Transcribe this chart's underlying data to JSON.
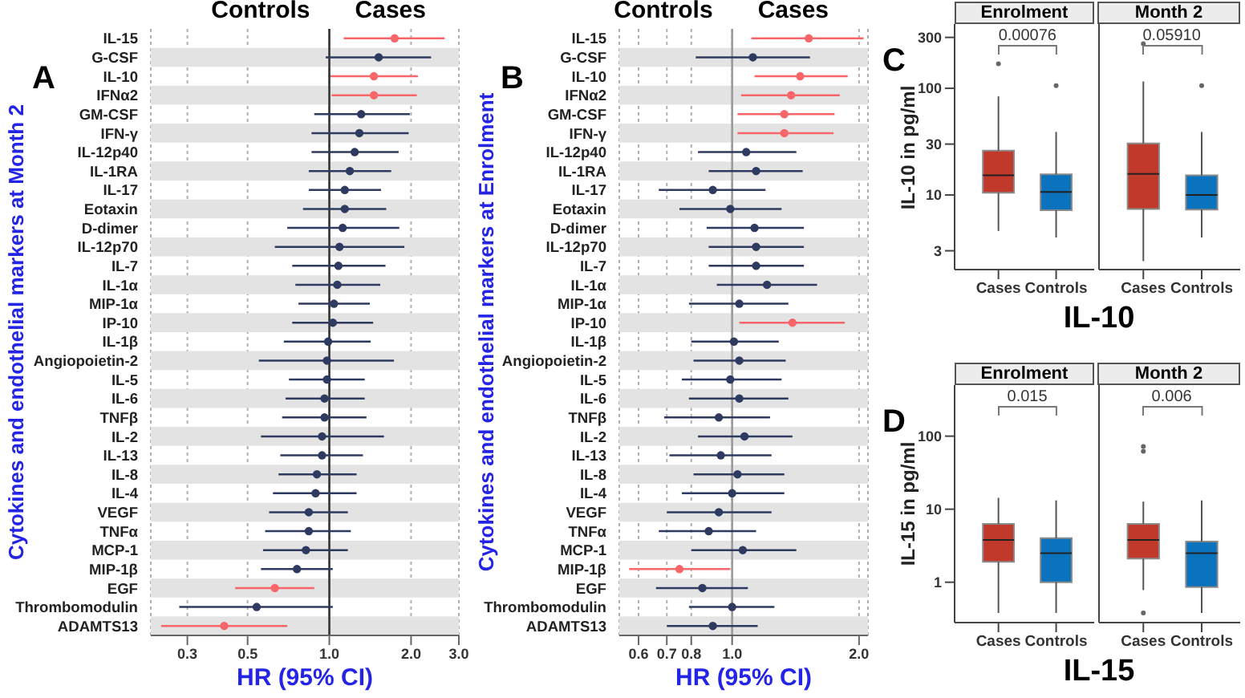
{
  "chart_data": [
    {
      "type": "scatter",
      "orientation": "horizontal",
      "xlabel": "HR (95% CI)",
      "ylabel": "Cytokines and endothelial markers at Month 2",
      "annotations": [
        "A",
        "Controls",
        "Cases"
      ],
      "categories": [
        "IL-15",
        "G-CSF",
        "IL-10",
        "IFNα2",
        "GM-CSF",
        "IFN-γ",
        "IL-12p40",
        "IL-1RA",
        "IL-17",
        "Eotaxin",
        "D-dimer",
        "IL-12p70",
        "IL-7",
        "IL-1α",
        "MIP-1α",
        "IP-10",
        "IL-1β",
        "Angiopoietin-2",
        "IL-5",
        "IL-6",
        "TNFβ",
        "IL-2",
        "IL-13",
        "IL-8",
        "IL-4",
        "VEGF",
        "TNFα",
        "MCP-1",
        "MIP-1β",
        "EGF",
        "Thrombomodulin",
        "ADAMTS13"
      ],
      "values": [
        1.74,
        1.52,
        1.46,
        1.46,
        1.31,
        1.29,
        1.24,
        1.19,
        1.14,
        1.14,
        1.12,
        1.09,
        1.08,
        1.07,
        1.04,
        1.03,
        0.99,
        0.98,
        0.98,
        0.96,
        0.96,
        0.94,
        0.94,
        0.9,
        0.89,
        0.84,
        0.84,
        0.82,
        0.76,
        0.63,
        0.54,
        0.41
      ],
      "errors": [
        [
          1.13,
          2.66
        ],
        [
          0.97,
          2.37
        ],
        [
          1.01,
          2.12
        ],
        [
          1.02,
          2.1
        ],
        [
          0.88,
          1.98
        ],
        [
          0.86,
          1.96
        ],
        [
          0.86,
          1.8
        ],
        [
          0.84,
          1.69
        ],
        [
          0.84,
          1.55
        ],
        [
          0.8,
          1.62
        ],
        [
          0.7,
          1.81
        ],
        [
          0.63,
          1.89
        ],
        [
          0.73,
          1.61
        ],
        [
          0.75,
          1.54
        ],
        [
          0.77,
          1.41
        ],
        [
          0.73,
          1.45
        ],
        [
          0.68,
          1.42
        ],
        [
          0.55,
          1.73
        ],
        [
          0.71,
          1.35
        ],
        [
          0.69,
          1.35
        ],
        [
          0.67,
          1.37
        ],
        [
          0.56,
          1.59
        ],
        [
          0.66,
          1.33
        ],
        [
          0.65,
          1.26
        ],
        [
          0.62,
          1.26
        ],
        [
          0.6,
          1.17
        ],
        [
          0.58,
          1.2
        ],
        [
          0.57,
          1.17
        ],
        [
          0.56,
          1.03
        ],
        [
          0.45,
          0.88
        ],
        [
          0.28,
          1.03
        ],
        [
          0.24,
          0.7
        ]
      ],
      "colors": [
        "#f8666a",
        "#2e3a5f",
        "#f8666a",
        "#f8666a",
        "#2e3a5f",
        "#2e3a5f",
        "#2e3a5f",
        "#2e3a5f",
        "#2e3a5f",
        "#2e3a5f",
        "#2e3a5f",
        "#2e3a5f",
        "#2e3a5f",
        "#2e3a5f",
        "#2e3a5f",
        "#2e3a5f",
        "#2e3a5f",
        "#2e3a5f",
        "#2e3a5f",
        "#2e3a5f",
        "#2e3a5f",
        "#2e3a5f",
        "#2e3a5f",
        "#2e3a5f",
        "#2e3a5f",
        "#2e3a5f",
        "#2e3a5f",
        "#2e3a5f",
        "#2e3a5f",
        "#f8666a",
        "#2e3a5f",
        "#f8666a"
      ],
      "log": "x",
      "xlim": [
        0.22,
        3
      ],
      "xticks": [
        0.3,
        0.5,
        {
          "value": 1,
          "label": "1.0"
        },
        {
          "value": 2,
          "label": "2.0"
        },
        {
          "value": 3,
          "label": "3.0"
        }
      ],
      "grid": "x",
      "marker": "circle",
      "ref_lines": [
        {
          "axis": "x",
          "value": 1,
          "color": "#333333"
        }
      ]
    },
    {
      "type": "scatter",
      "orientation": "horizontal",
      "xlabel": "HR (95% CI)",
      "ylabel": "Cytokines and endothelial markers at Enrolment",
      "annotations": [
        "B",
        "Controls",
        "Cases"
      ],
      "categories": [
        "IL-15",
        "G-CSF",
        "IL-10",
        "IFNα2",
        "GM-CSF",
        "IFN-γ",
        "IL-12p40",
        "IL-1RA",
        "IL-17",
        "Eotaxin",
        "D-dimer",
        "IL-12p70",
        "IL-7",
        "IL-1α",
        "MIP-1α",
        "IP-10",
        "IL-1β",
        "Angiopoietin-2",
        "IL-5",
        "IL-6",
        "TNFβ",
        "IL-2",
        "IL-13",
        "IL-8",
        "IL-4",
        "VEGF",
        "TNFα",
        "MCP-1",
        "MIP-1β",
        "EGF",
        "Thrombomodulin",
        "ADAMTS13"
      ],
      "values": [
        1.52,
        1.12,
        1.45,
        1.38,
        1.33,
        1.33,
        1.08,
        1.14,
        0.9,
        0.99,
        1.13,
        1.14,
        1.14,
        1.21,
        1.04,
        1.39,
        1.01,
        1.04,
        0.99,
        1.04,
        0.93,
        1.07,
        0.94,
        1.03,
        1.0,
        0.93,
        0.88,
        1.06,
        0.75,
        0.85,
        1.0,
        0.9
      ],
      "errors": [
        [
          1.11,
          2.05
        ],
        [
          0.82,
          1.53
        ],
        [
          1.13,
          1.88
        ],
        [
          1.05,
          1.8
        ],
        [
          1.03,
          1.75
        ],
        [
          1.03,
          1.74
        ],
        [
          0.83,
          1.42
        ],
        [
          0.88,
          1.47
        ],
        [
          0.67,
          1.2
        ],
        [
          0.75,
          1.31
        ],
        [
          0.87,
          1.48
        ],
        [
          0.88,
          1.48
        ],
        [
          0.88,
          1.48
        ],
        [
          0.92,
          1.59
        ],
        [
          0.79,
          1.36
        ],
        [
          1.04,
          1.85
        ],
        [
          0.8,
          1.29
        ],
        [
          0.81,
          1.34
        ],
        [
          0.76,
          1.31
        ],
        [
          0.79,
          1.36
        ],
        [
          0.69,
          1.23
        ],
        [
          0.83,
          1.39
        ],
        [
          0.71,
          1.24
        ],
        [
          0.81,
          1.33
        ],
        [
          0.76,
          1.33
        ],
        [
          0.7,
          1.24
        ],
        [
          0.67,
          1.14
        ],
        [
          0.8,
          1.42
        ],
        [
          0.57,
          0.99
        ],
        [
          0.66,
          1.09
        ],
        [
          0.79,
          1.26
        ],
        [
          0.7,
          1.15
        ]
      ],
      "colors": [
        "#f8666a",
        "#2e3a5f",
        "#f8666a",
        "#f8666a",
        "#f8666a",
        "#f8666a",
        "#2e3a5f",
        "#2e3a5f",
        "#2e3a5f",
        "#2e3a5f",
        "#2e3a5f",
        "#2e3a5f",
        "#2e3a5f",
        "#2e3a5f",
        "#2e3a5f",
        "#f8666a",
        "#2e3a5f",
        "#2e3a5f",
        "#2e3a5f",
        "#2e3a5f",
        "#2e3a5f",
        "#2e3a5f",
        "#2e3a5f",
        "#2e3a5f",
        "#2e3a5f",
        "#2e3a5f",
        "#2e3a5f",
        "#2e3a5f",
        "#f8666a",
        "#2e3a5f",
        "#2e3a5f",
        "#2e3a5f"
      ],
      "log": "x",
      "xlim": [
        0.54,
        2.1
      ],
      "xticks": [
        0.6,
        0.7,
        0.8,
        {
          "value": 1,
          "label": "1.0"
        },
        {
          "value": 2,
          "label": "2.0"
        }
      ],
      "grid": "x",
      "marker": "circle",
      "ref_lines": [
        {
          "axis": "x",
          "value": 1,
          "color": "#9a9a9a"
        }
      ]
    },
    {
      "type": "box",
      "title": "Enrolment",
      "ylabel": "IL-10 in pg/ml",
      "xlabel": "IL-10",
      "annotations": [
        "C",
        "0.00076"
      ],
      "categories": [
        "Cases",
        "Controls"
      ],
      "colors": [
        "#c0392b",
        "#0b72bd"
      ],
      "boxes": [
        {
          "low": 4.6,
          "q1": 10.5,
          "median": 15.3,
          "q3": 26,
          "high": 84,
          "outliers": [
            170
          ]
        },
        {
          "low": 4.0,
          "q1": 7.2,
          "median": 10.7,
          "q3": 15.6,
          "high": 39,
          "outliers": [
            106
          ]
        }
      ],
      "log": "y",
      "ylim": [
        2,
        400
      ],
      "yticks": [
        3,
        10,
        30,
        100,
        300
      ]
    },
    {
      "type": "box",
      "title": "Month 2",
      "annotations": [
        "0.05910"
      ],
      "categories": [
        "Cases",
        "Controls"
      ],
      "colors": [
        "#c0392b",
        "#0b72bd"
      ],
      "boxes": [
        {
          "low": 2.4,
          "q1": 7.4,
          "median": 15.8,
          "q3": 30.5,
          "high": 116,
          "outliers": [
            262
          ]
        },
        {
          "low": 4.0,
          "q1": 7.3,
          "median": 10,
          "q3": 15.3,
          "high": 39,
          "outliers": [
            106
          ]
        }
      ],
      "log": "y",
      "ylim": [
        2,
        400
      ],
      "tick_labels": "x"
    },
    {
      "type": "box",
      "title": "Enrolment",
      "ylabel": "IL-15 in pg/ml",
      "xlabel": "IL-15",
      "annotations": [
        "D",
        "0.015"
      ],
      "categories": [
        "Cases",
        "Controls"
      ],
      "colors": [
        "#c0392b",
        "#0b72bd"
      ],
      "boxes": [
        {
          "low": 0.38,
          "q1": 1.9,
          "median": 3.8,
          "q3": 6.3,
          "high": 14.3
        },
        {
          "low": 0.38,
          "q1": 1.0,
          "median": 2.5,
          "q3": 4.0,
          "high": 13.2
        }
      ],
      "log": "y",
      "ylim": [
        0.28,
        500
      ],
      "yticks": [
        1,
        10,
        100
      ]
    },
    {
      "type": "box",
      "title": "Month 2",
      "annotations": [
        "0.006"
      ],
      "categories": [
        "Cases",
        "Controls"
      ],
      "colors": [
        "#c0392b",
        "#0b72bd"
      ],
      "boxes": [
        {
          "low": 0.78,
          "q1": 2.1,
          "median": 3.8,
          "q3": 6.3,
          "high": 12.7,
          "outliers": [
            72,
            62,
            0.38
          ]
        },
        {
          "low": 0.38,
          "q1": 0.86,
          "median": 2.5,
          "q3": 3.6,
          "high": 13.2
        }
      ],
      "log": "y",
      "ylim": [
        0.28,
        500
      ],
      "tick_labels": "x"
    }
  ]
}
